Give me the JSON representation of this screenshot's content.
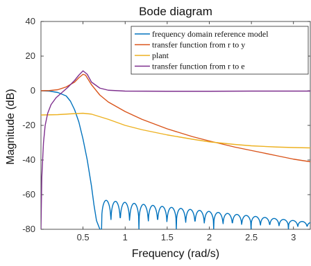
{
  "chart_data": {
    "type": "line",
    "title": "Bode diagram",
    "xlabel": "Frequency (rad/s)",
    "ylabel": "Magnitude (dB)",
    "xlim": [
      0.0,
      3.2
    ],
    "ylim": [
      -80,
      40
    ],
    "xticks": [
      0.5,
      1,
      1.5,
      2,
      2.5,
      3
    ],
    "xtick_labels": [
      "0.5",
      "1",
      "1.5",
      "2",
      "2.5",
      "3"
    ],
    "yticks": [
      -80,
      -60,
      -40,
      -20,
      0,
      20,
      40
    ],
    "ytick_labels": [
      "-80",
      "-60",
      "-40",
      "-20",
      "0",
      "20",
      "40"
    ],
    "grid": false,
    "legend_position": "top-right",
    "series": [
      {
        "name": "frequency domain reference model",
        "color": "#0072BD",
        "x": [
          0.0,
          0.1,
          0.2,
          0.3,
          0.35,
          0.4,
          0.45,
          0.5,
          0.55,
          0.6,
          0.63,
          0.66,
          0.7,
          0.72
        ],
        "y": [
          0,
          -0.2,
          -1,
          -3,
          -6,
          -11,
          -18,
          -28,
          -40,
          -55,
          -66,
          -75,
          -80,
          -80
        ],
        "ripple": {
          "x_start": 0.72,
          "x_end": 3.2,
          "x_spacing": 0.111,
          "peak_start": -63,
          "peak_end": -76,
          "floor": -80
        }
      },
      {
        "name": "transfer function from r to y",
        "color": "#D95319",
        "x": [
          0.0,
          0.1,
          0.2,
          0.3,
          0.4,
          0.45,
          0.5,
          0.53,
          0.6,
          0.7,
          0.8,
          1.0,
          1.2,
          1.5,
          1.8,
          2.0,
          2.3,
          2.5,
          2.8,
          3.0,
          3.2
        ],
        "y": [
          0,
          0.1,
          0.6,
          2.2,
          5.0,
          7.5,
          9.5,
          9.0,
          3.5,
          -2.5,
          -6.5,
          -12,
          -16.5,
          -22,
          -26.5,
          -29,
          -32.5,
          -34.5,
          -37.5,
          -39.5,
          -41
        ]
      },
      {
        "name": "plant",
        "color": "#EDB120",
        "x": [
          0.0,
          0.2,
          0.4,
          0.5,
          0.6,
          0.8,
          1.0,
          1.2,
          1.5,
          1.8,
          2.0,
          2.3,
          2.5,
          2.8,
          3.0,
          3.2
        ],
        "y": [
          -14,
          -13.8,
          -13.2,
          -13.0,
          -13.5,
          -16.5,
          -20,
          -22.5,
          -25.5,
          -28,
          -29.5,
          -31,
          -31.8,
          -32.5,
          -32.8,
          -33
        ]
      },
      {
        "name": "transfer function from r to e",
        "color": "#7E2F8E",
        "x": [
          0.0,
          0.01,
          0.03,
          0.05,
          0.08,
          0.12,
          0.18,
          0.25,
          0.32,
          0.4,
          0.45,
          0.5,
          0.55,
          0.6,
          0.7,
          0.8,
          1.0,
          1.5,
          2.0,
          2.5,
          3.0,
          3.2
        ],
        "y": [
          -80,
          -50,
          -30,
          -20,
          -13,
          -8,
          -4,
          -1,
          2,
          6,
          9,
          11.5,
          9.5,
          5,
          1.5,
          0.3,
          -0.2,
          -0.3,
          -0.3,
          -0.2,
          -0.2,
          -0.2
        ]
      }
    ]
  },
  "legend": {
    "items": [
      {
        "label": "frequency domain reference model",
        "color": "#0072BD"
      },
      {
        "label": "transfer function from r to y",
        "color": "#D95319"
      },
      {
        "label": "plant",
        "color": "#EDB120"
      },
      {
        "label": "transfer function from r to e",
        "color": "#7E2F8E"
      }
    ]
  }
}
